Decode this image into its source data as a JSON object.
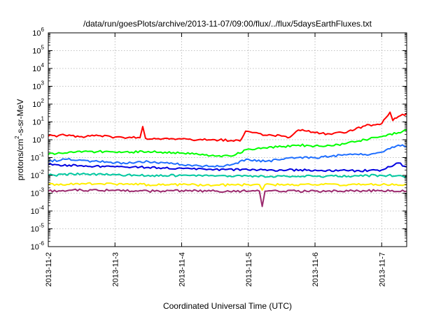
{
  "chart_data": {
    "type": "line",
    "title": "/data/run/goesPlots/archive/2013-11-07/09:00/flux/../flux/5daysEarthFluxes.txt",
    "xlabel": "Coordinated Universal Time (UTC)",
    "ylabel": {
      "prefix": "protons/cm",
      "sup": "2",
      "suffix": "-s-sr-MeV"
    },
    "y_scale": "log",
    "ylim": [
      1e-06,
      1000000.0
    ],
    "xlim": [
      "2013-11-02",
      "2013-11-07 09:00"
    ],
    "x_ticks": [
      "2013-11-2",
      "2013-11-3",
      "2013-11-4",
      "2013-11-5",
      "2013-11-6",
      "2013-11-7"
    ],
    "y_ticks": [
      {
        "value": 1000000.0,
        "base": "10",
        "exp": "6"
      },
      {
        "value": 100000.0,
        "base": "10",
        "exp": "5"
      },
      {
        "value": 10000.0,
        "base": "10",
        "exp": "4"
      },
      {
        "value": 1000.0,
        "base": "10",
        "exp": "3"
      },
      {
        "value": 100.0,
        "base": "10",
        "exp": "2"
      },
      {
        "value": 10.0,
        "base": "10",
        "exp": "1"
      },
      {
        "value": 1.0,
        "base": "10",
        "exp": "0"
      },
      {
        "value": 0.1,
        "base": "10",
        "exp": "-1"
      },
      {
        "value": 0.01,
        "base": "10",
        "exp": "-2"
      },
      {
        "value": 0.001,
        "base": "10",
        "exp": "-3"
      },
      {
        "value": 0.0001,
        "base": "10",
        "exp": "-4"
      },
      {
        "value": 1e-05,
        "base": "10",
        "exp": "-5"
      },
      {
        "value": 1e-06,
        "base": "10",
        "exp": "-6"
      }
    ],
    "grid": true,
    "series": [
      {
        "color": "#ff0000",
        "points": [
          [
            "2013-11-02 00:00",
            1.6
          ],
          [
            "2013-11-02 06:00",
            1.8
          ],
          [
            "2013-11-02 12:00",
            1.5
          ],
          [
            "2013-11-02 18:00",
            1.7
          ],
          [
            "2013-11-03 00:00",
            1.4
          ],
          [
            "2013-11-03 06:00",
            1.3
          ],
          [
            "2013-11-03 09:00",
            1.3
          ],
          [
            "2013-11-03 10:00",
            5.5
          ],
          [
            "2013-11-03 11:00",
            1.2
          ],
          [
            "2013-11-03 18:00",
            1.2
          ],
          [
            "2013-11-04 00:00",
            1.1
          ],
          [
            "2013-11-04 06:00",
            1.0
          ],
          [
            "2013-11-04 12:00",
            1.0
          ],
          [
            "2013-11-04 18:00",
            0.9
          ],
          [
            "2013-11-04 21:00",
            0.85
          ],
          [
            "2013-11-04 23:00",
            3.0
          ],
          [
            "2013-11-05 03:00",
            2.5
          ],
          [
            "2013-11-05 06:00",
            1.8
          ],
          [
            "2013-11-05 12:00",
            1.6
          ],
          [
            "2013-11-05 15:00",
            1.4
          ],
          [
            "2013-11-05 18:00",
            3.5
          ],
          [
            "2013-11-06 00:00",
            2.5
          ],
          [
            "2013-11-06 06:00",
            2.0
          ],
          [
            "2013-11-06 12:00",
            3.0
          ],
          [
            "2013-11-06 18:00",
            6.0
          ],
          [
            "2013-11-07 00:00",
            8.0
          ],
          [
            "2013-11-07 03:00",
            35
          ],
          [
            "2013-11-07 04:00",
            12
          ],
          [
            "2013-11-07 06:00",
            20
          ],
          [
            "2013-11-07 09:00",
            30
          ]
        ]
      },
      {
        "color": "#00ff00",
        "points": [
          [
            "2013-11-02 00:00",
            0.15
          ],
          [
            "2013-11-02 06:00",
            0.18
          ],
          [
            "2013-11-02 12:00",
            0.2
          ],
          [
            "2013-11-02 18:00",
            0.22
          ],
          [
            "2013-11-03 00:00",
            0.2
          ],
          [
            "2013-11-03 06:00",
            0.2
          ],
          [
            "2013-11-03 12:00",
            0.22
          ],
          [
            "2013-11-03 18:00",
            0.2
          ],
          [
            "2013-11-04 00:00",
            0.18
          ],
          [
            "2013-11-04 06:00",
            0.15
          ],
          [
            "2013-11-04 12:00",
            0.12
          ],
          [
            "2013-11-04 18:00",
            0.12
          ],
          [
            "2013-11-05 00:00",
            0.3
          ],
          [
            "2013-11-05 06:00",
            0.35
          ],
          [
            "2013-11-05 12:00",
            0.4
          ],
          [
            "2013-11-05 18:00",
            0.5
          ],
          [
            "2013-11-06 00:00",
            0.45
          ],
          [
            "2013-11-06 06:00",
            0.45
          ],
          [
            "2013-11-06 12:00",
            0.7
          ],
          [
            "2013-11-06 18:00",
            1.0
          ],
          [
            "2013-11-07 00:00",
            1.5
          ],
          [
            "2013-11-07 06:00",
            2.5
          ],
          [
            "2013-11-07 09:00",
            3.5
          ]
        ]
      },
      {
        "color": "#1e6eff",
        "points": [
          [
            "2013-11-02 00:00",
            0.06
          ],
          [
            "2013-11-02 06:00",
            0.08
          ],
          [
            "2013-11-02 12:00",
            0.07
          ],
          [
            "2013-11-02 18:00",
            0.06
          ],
          [
            "2013-11-03 00:00",
            0.05
          ],
          [
            "2013-11-03 06:00",
            0.05
          ],
          [
            "2013-11-03 12:00",
            0.06
          ],
          [
            "2013-11-03 18:00",
            0.05
          ],
          [
            "2013-11-04 00:00",
            0.04
          ],
          [
            "2013-11-04 06:00",
            0.035
          ],
          [
            "2013-11-04 12:00",
            0.03
          ],
          [
            "2013-11-04 18:00",
            0.04
          ],
          [
            "2013-11-05 00:00",
            0.08
          ],
          [
            "2013-11-05 06:00",
            0.06
          ],
          [
            "2013-11-05 12:00",
            0.08
          ],
          [
            "2013-11-05 18:00",
            0.1
          ],
          [
            "2013-11-06 00:00",
            0.1
          ],
          [
            "2013-11-06 06:00",
            0.12
          ],
          [
            "2013-11-06 12:00",
            0.15
          ],
          [
            "2013-11-06 18:00",
            0.15
          ],
          [
            "2013-11-07 00:00",
            0.2
          ],
          [
            "2013-11-07 06:00",
            0.5
          ],
          [
            "2013-11-07 09:00",
            0.4
          ]
        ]
      },
      {
        "color": "#0000e0",
        "points": [
          [
            "2013-11-02 00:00",
            0.04
          ],
          [
            "2013-11-02 12:00",
            0.035
          ],
          [
            "2013-11-03 00:00",
            0.03
          ],
          [
            "2013-11-03 12:00",
            0.028
          ],
          [
            "2013-11-04 00:00",
            0.025
          ],
          [
            "2013-11-04 12:00",
            0.022
          ],
          [
            "2013-11-05 00:00",
            0.02
          ],
          [
            "2013-11-05 12:00",
            0.02
          ],
          [
            "2013-11-06 00:00",
            0.02
          ],
          [
            "2013-11-06 12:00",
            0.018
          ],
          [
            "2013-11-07 00:00",
            0.02
          ],
          [
            "2013-11-07 06:00",
            0.05
          ],
          [
            "2013-11-07 09:00",
            0.03
          ]
        ]
      },
      {
        "color": "#00c8a0",
        "points": [
          [
            "2013-11-02 00:00",
            0.01
          ],
          [
            "2013-11-02 12:00",
            0.012
          ],
          [
            "2013-11-03 00:00",
            0.011
          ],
          [
            "2013-11-03 12:00",
            0.01
          ],
          [
            "2013-11-04 00:00",
            0.01
          ],
          [
            "2013-11-04 12:00",
            0.009
          ],
          [
            "2013-11-05 00:00",
            0.009
          ],
          [
            "2013-11-05 12:00",
            0.009
          ],
          [
            "2013-11-06 00:00",
            0.009
          ],
          [
            "2013-11-06 12:00",
            0.009
          ],
          [
            "2013-11-07 00:00",
            0.01
          ],
          [
            "2013-11-07 09:00",
            0.009
          ]
        ]
      },
      {
        "color": "#ffee00",
        "points": [
          [
            "2013-11-02 00:00",
            0.003
          ],
          [
            "2013-11-02 12:00",
            0.0035
          ],
          [
            "2013-11-03 00:00",
            0.0032
          ],
          [
            "2013-11-03 12:00",
            0.003
          ],
          [
            "2013-11-04 00:00",
            0.003
          ],
          [
            "2013-11-04 12:00",
            0.0028
          ],
          [
            "2013-11-05 00:00",
            0.003
          ],
          [
            "2013-11-05 04:00",
            0.003
          ],
          [
            "2013-11-05 05:00",
            0.0015
          ],
          [
            "2013-11-05 06:00",
            0.003
          ],
          [
            "2013-11-06 00:00",
            0.003
          ],
          [
            "2013-11-06 12:00",
            0.003
          ],
          [
            "2013-11-07 00:00",
            0.003
          ],
          [
            "2013-11-07 09:00",
            0.003
          ]
        ]
      },
      {
        "color": "#9b2a6e",
        "points": [
          [
            "2013-11-02 00:00",
            0.0013
          ],
          [
            "2013-11-02 12:00",
            0.0015
          ],
          [
            "2013-11-03 00:00",
            0.0014
          ],
          [
            "2013-11-03 12:00",
            0.0013
          ],
          [
            "2013-11-04 00:00",
            0.0014
          ],
          [
            "2013-11-04 12:00",
            0.0013
          ],
          [
            "2013-11-05 00:00",
            0.0013
          ],
          [
            "2013-11-05 04:00",
            0.0013
          ],
          [
            "2013-11-05 05:00",
            0.00018
          ],
          [
            "2013-11-05 06:00",
            0.0013
          ],
          [
            "2013-11-06 00:00",
            0.0013
          ],
          [
            "2013-11-06 12:00",
            0.0013
          ],
          [
            "2013-11-07 00:00",
            0.0014
          ],
          [
            "2013-11-07 09:00",
            0.0013
          ]
        ]
      }
    ]
  }
}
